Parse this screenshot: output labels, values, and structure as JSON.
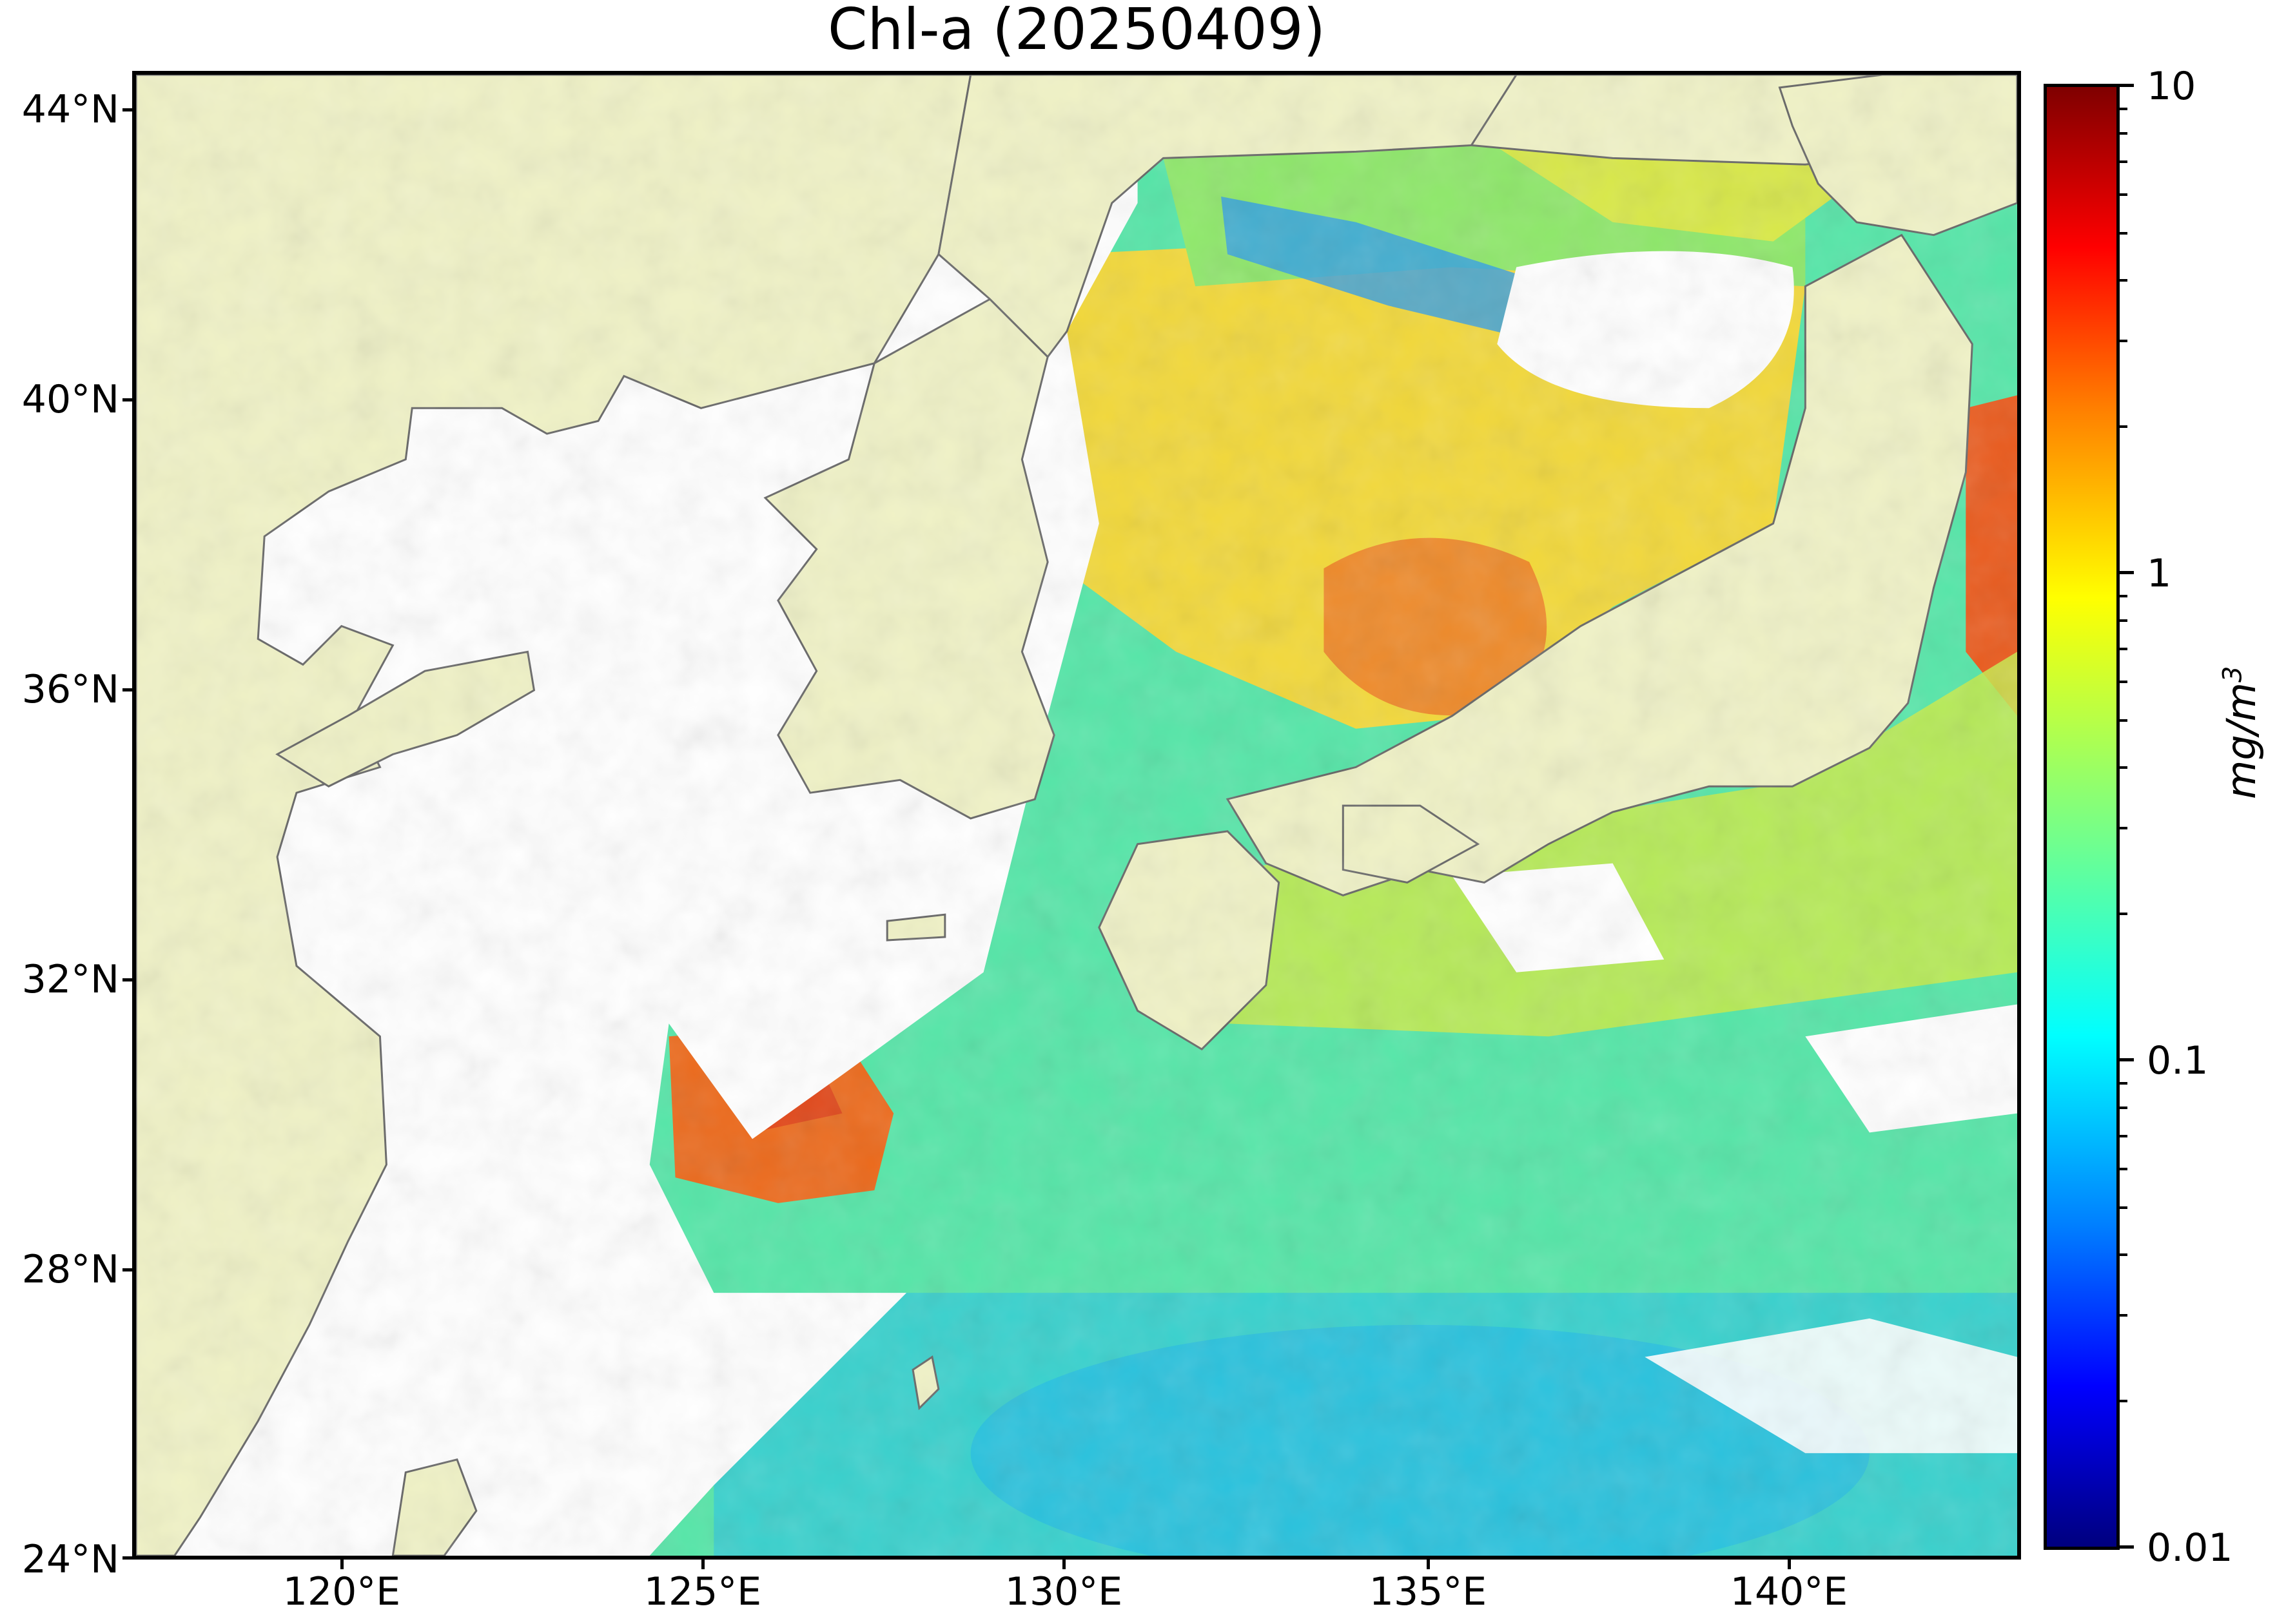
{
  "title": "Chl-a (20250409)",
  "map": {
    "lon_range": [
      117,
      143
    ],
    "lat_range": [
      24,
      44.5
    ],
    "land_color": "#f0f2c6",
    "no_data_color": "#ffffff",
    "coastline_color": "#666666"
  },
  "lat_labels": [
    "44°N",
    "40°N",
    "36°N",
    "32°N",
    "28°N",
    "24°N"
  ],
  "lat_values": [
    44,
    40,
    36,
    32,
    28,
    24
  ],
  "lon_labels": [
    "120°E",
    "125°E",
    "130°E",
    "135°E",
    "140°E"
  ],
  "lon_values": [
    120,
    125,
    130,
    135,
    140
  ],
  "colorbar": {
    "scale": "log",
    "range": [
      0.01,
      10
    ],
    "colormap": "jet",
    "tick_labels": [
      "10",
      "1",
      "0.1",
      "0.01"
    ],
    "unit_base": "mg/m",
    "unit_exp": "3"
  }
}
